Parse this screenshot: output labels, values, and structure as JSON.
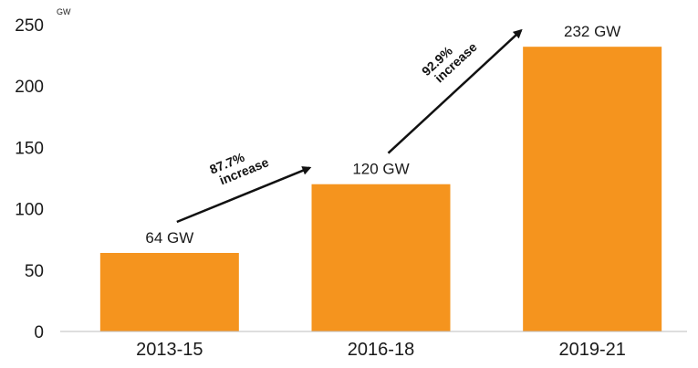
{
  "chart_data": {
    "type": "bar",
    "unit_label": "GW",
    "categories": [
      "2013-15",
      "2016-18",
      "2019-21"
    ],
    "values": [
      64,
      120,
      232
    ],
    "data_labels": [
      "64 GW",
      "120 GW",
      "232 GW"
    ],
    "ylim": [
      0,
      250
    ],
    "yticks": [
      0,
      50,
      100,
      150,
      200,
      250
    ],
    "grid": false,
    "bar_color": "#F5941E",
    "annotations": [
      {
        "pct": "87.7%",
        "word": "increase",
        "from_category": "2013-15",
        "to_category": "2016-18"
      },
      {
        "pct": "92.9%",
        "word": "increase",
        "from_category": "2016-18",
        "to_category": "2019-21"
      }
    ]
  }
}
